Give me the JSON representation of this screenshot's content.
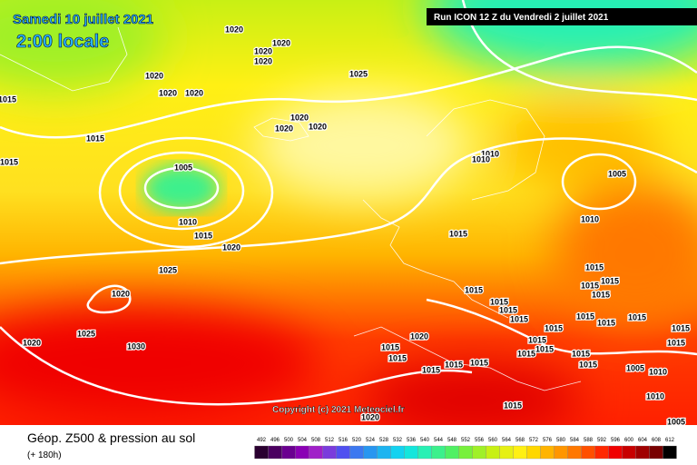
{
  "header": {
    "date": "Samedi 10 juillet 2021",
    "time": "2:00 locale",
    "run": "Run ICON 12 Z du Vendredi 2 juillet 2021"
  },
  "copyright": "Copyright (c) 2021 Meteociel.fr",
  "footer": {
    "title": "Géop. Z500 & pression au sol",
    "lead": "(+ 180h)"
  },
  "legend": {
    "values": [
      492,
      496,
      500,
      504,
      508,
      512,
      516,
      520,
      524,
      528,
      532,
      536,
      540,
      544,
      548,
      552,
      556,
      560,
      564,
      568,
      572,
      576,
      580,
      584,
      588,
      592,
      596,
      600,
      604,
      608,
      612
    ],
    "colors": [
      "#2a0030",
      "#4b0060",
      "#6a0090",
      "#8a00b4",
      "#a020c8",
      "#7a3cdc",
      "#5050f0",
      "#3c78f0",
      "#2896f0",
      "#1eb4f0",
      "#14d2f0",
      "#14e6dc",
      "#28f0b4",
      "#3cf08c",
      "#50f064",
      "#78f03c",
      "#a0f028",
      "#c8f014",
      "#e6f014",
      "#fff014",
      "#ffd700",
      "#ffb400",
      "#ff9600",
      "#ff7800",
      "#ff5000",
      "#ff2800",
      "#f00000",
      "#c80000",
      "#a00000",
      "#780000",
      "#000000"
    ]
  },
  "isobars": {
    "labels": [
      "1020",
      "1020",
      "1020",
      "1020",
      "1020",
      "1020",
      "1020",
      "1025",
      "1015",
      "1015",
      "1015",
      "1020",
      "1020",
      "1020",
      "1005",
      "1010",
      "1015",
      "1020",
      "1025",
      "1020",
      "1020",
      "1025",
      "1030",
      "1010",
      "1010",
      "1005",
      "1010",
      "1015",
      "1015",
      "1015",
      "1015",
      "1015",
      "1015",
      "1015",
      "1015",
      "1015",
      "1015",
      "1015",
      "1015",
      "1015",
      "1015",
      "1015",
      "1020",
      "1015",
      "1015",
      "1015",
      "1015",
      "1015",
      "1015",
      "1015",
      "1015",
      "1015",
      "1015",
      "1005",
      "1010",
      "1005",
      "1010",
      "1015",
      "1020"
    ]
  }
}
